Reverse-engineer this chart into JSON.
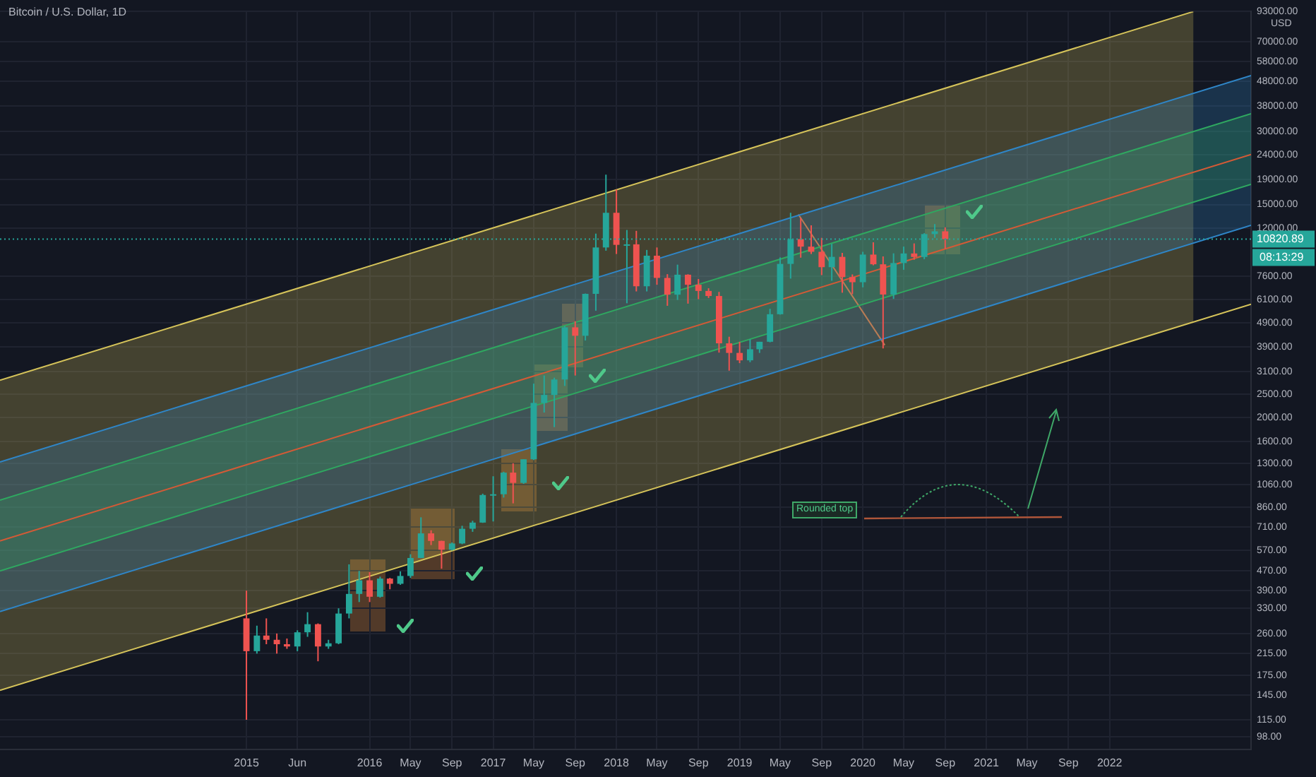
{
  "chart_data": {
    "type": "candlestick",
    "title": "Bitcoin / U.S. Dollar, 1D",
    "ylabel": "USD",
    "log": "y",
    "grid": true,
    "xlim": [
      "2013-01-01",
      "2023-02-24"
    ],
    "ylim": [
      87,
      93000
    ],
    "xticks": [
      {
        "value": "2015-01-01",
        "label": "2015"
      },
      {
        "value": "2015-06-01",
        "label": "Jun"
      },
      {
        "value": "2016-01-01",
        "label": "2016"
      },
      {
        "value": "2016-05-01",
        "label": "May"
      },
      {
        "value": "2016-09-01",
        "label": "Sep"
      },
      {
        "value": "2017-01-01",
        "label": "2017"
      },
      {
        "value": "2017-05-01",
        "label": "May"
      },
      {
        "value": "2017-09-01",
        "label": "Sep"
      },
      {
        "value": "2018-01-01",
        "label": "2018"
      },
      {
        "value": "2018-05-01",
        "label": "May"
      },
      {
        "value": "2018-09-01",
        "label": "Sep"
      },
      {
        "value": "2019-01-01",
        "label": "2019"
      },
      {
        "value": "2019-05-01",
        "label": "May"
      },
      {
        "value": "2019-09-01",
        "label": "Sep"
      },
      {
        "value": "2020-01-01",
        "label": "2020"
      },
      {
        "value": "2020-05-01",
        "label": "May"
      },
      {
        "value": "2020-09-01",
        "label": "Sep"
      },
      {
        "value": "2021-01-01",
        "label": "2021"
      },
      {
        "value": "2021-05-01",
        "label": "May"
      },
      {
        "value": "2021-09-01",
        "label": "Sep"
      },
      {
        "value": "2022-01-01",
        "label": "2022"
      }
    ],
    "yticks": [
      {
        "value": 93000,
        "label": "93000.00"
      },
      {
        "value": 70000,
        "label": "70000.00"
      },
      {
        "value": 58000,
        "label": "58000.00"
      },
      {
        "value": 48000,
        "label": "48000.00"
      },
      {
        "value": 38000,
        "label": "38000.00"
      },
      {
        "value": 30000,
        "label": "30000.00"
      },
      {
        "value": 24000,
        "label": "24000.00"
      },
      {
        "value": 19000,
        "label": "19000.00"
      },
      {
        "value": 15000,
        "label": "15000.00"
      },
      {
        "value": 12000,
        "label": "12000.00"
      },
      {
        "value": 7600,
        "label": "7600.00"
      },
      {
        "value": 6100,
        "label": "6100.00"
      },
      {
        "value": 4900,
        "label": "4900.00"
      },
      {
        "value": 3900,
        "label": "3900.00"
      },
      {
        "value": 3100,
        "label": "3100.00"
      },
      {
        "value": 2500,
        "label": "2500.00"
      },
      {
        "value": 2000,
        "label": "2000.00"
      },
      {
        "value": 1600,
        "label": "1600.00"
      },
      {
        "value": 1300,
        "label": "1300.00"
      },
      {
        "value": 1060,
        "label": "1060.00"
      },
      {
        "value": 860,
        "label": "860.00"
      },
      {
        "value": 710,
        "label": "710.00"
      },
      {
        "value": 570,
        "label": "570.00"
      },
      {
        "value": 470,
        "label": "470.00"
      },
      {
        "value": 390,
        "label": "390.00"
      },
      {
        "value": 330,
        "label": "330.00"
      },
      {
        "value": 260,
        "label": "260.00"
      },
      {
        "value": 215,
        "label": "215.00"
      },
      {
        "value": 175,
        "label": "175.00"
      },
      {
        "value": 145,
        "label": "145.00"
      },
      {
        "value": 115,
        "label": "115.00"
      },
      {
        "value": 98,
        "label": "98.00"
      }
    ],
    "x": [
      "2015-01",
      "2015-02",
      "2015-03",
      "2015-04",
      "2015-05",
      "2015-06",
      "2015-07",
      "2015-08",
      "2015-09",
      "2015-10",
      "2015-11",
      "2015-12",
      "2016-01",
      "2016-02",
      "2016-03",
      "2016-04",
      "2016-05",
      "2016-06",
      "2016-07",
      "2016-08",
      "2016-09",
      "2016-10",
      "2016-11",
      "2016-12",
      "2017-01",
      "2017-02",
      "2017-03",
      "2017-04",
      "2017-05",
      "2017-06",
      "2017-07",
      "2017-08",
      "2017-09",
      "2017-10",
      "2017-11",
      "2017-12",
      "2018-01",
      "2018-02",
      "2018-03",
      "2018-04",
      "2018-05",
      "2018-06",
      "2018-07",
      "2018-08",
      "2018-09",
      "2018-10",
      "2018-11",
      "2018-12",
      "2019-01",
      "2019-02",
      "2019-03",
      "2019-04",
      "2019-05",
      "2019-06",
      "2019-07",
      "2019-08",
      "2019-09",
      "2019-10",
      "2019-11",
      "2019-12",
      "2020-01",
      "2020-02",
      "2020-03",
      "2020-04",
      "2020-05",
      "2020-06",
      "2020-07",
      "2020-08",
      "2020-09"
    ],
    "ohlc": [
      [
        300,
        390,
        115,
        220
      ],
      [
        220,
        280,
        215,
        255
      ],
      [
        255,
        300,
        235,
        245
      ],
      [
        245,
        260,
        215,
        235
      ],
      [
        235,
        248,
        225,
        230
      ],
      [
        230,
        268,
        220,
        263
      ],
      [
        263,
        318,
        252,
        284
      ],
      [
        284,
        286,
        200,
        230
      ],
      [
        230,
        245,
        225,
        237
      ],
      [
        237,
        330,
        235,
        314
      ],
      [
        314,
        500,
        300,
        378
      ],
      [
        378,
        470,
        350,
        430
      ],
      [
        430,
        465,
        350,
        368
      ],
      [
        368,
        445,
        365,
        437
      ],
      [
        437,
        440,
        395,
        416
      ],
      [
        416,
        468,
        412,
        448
      ],
      [
        448,
        550,
        440,
        531
      ],
      [
        531,
        780,
        530,
        670
      ],
      [
        670,
        690,
        600,
        624
      ],
      [
        624,
        625,
        480,
        574
      ],
      [
        574,
        615,
        570,
        609
      ],
      [
        609,
        720,
        605,
        700
      ],
      [
        700,
        755,
        680,
        742
      ],
      [
        742,
        975,
        740,
        963
      ],
      [
        963,
        1150,
        750,
        970
      ],
      [
        970,
        1200,
        940,
        1190
      ],
      [
        1190,
        1300,
        890,
        1080
      ],
      [
        1080,
        1350,
        1070,
        1350
      ],
      [
        1350,
        2760,
        1340,
        2300
      ],
      [
        2300,
        2980,
        2100,
        2480
      ],
      [
        2480,
        2920,
        1830,
        2870
      ],
      [
        2870,
        4750,
        2700,
        4700
      ],
      [
        4700,
        4980,
        2980,
        4340
      ],
      [
        4340,
        6470,
        4150,
        6450
      ],
      [
        6450,
        11400,
        5500,
        10000
      ],
      [
        10000,
        19890,
        9700,
        13880
      ],
      [
        13880,
        17300,
        9400,
        10250
      ],
      [
        10250,
        11800,
        5900,
        10300
      ],
      [
        10300,
        11700,
        6600,
        6930
      ],
      [
        6930,
        9770,
        6600,
        9250
      ],
      [
        9250,
        10000,
        7030,
        7500
      ],
      [
        7500,
        7770,
        5760,
        6400
      ],
      [
        6400,
        8500,
        6090,
        7730
      ],
      [
        7730,
        7760,
        5880,
        7030
      ],
      [
        7030,
        7420,
        6130,
        6630
      ],
      [
        6630,
        6800,
        6200,
        6320
      ],
      [
        6320,
        6570,
        3700,
        4040
      ],
      [
        4040,
        4300,
        3120,
        3690
      ],
      [
        3690,
        4100,
        3350,
        3440
      ],
      [
        3440,
        4200,
        3380,
        3820
      ],
      [
        3820,
        4100,
        3690,
        4100
      ],
      [
        4100,
        5600,
        4080,
        5320
      ],
      [
        5320,
        9100,
        5300,
        8560
      ],
      [
        8560,
        13880,
        7450,
        10820
      ],
      [
        10820,
        13200,
        9080,
        10080
      ],
      [
        10080,
        12330,
        9400,
        9600
      ],
      [
        9600,
        10950,
        7700,
        8300
      ],
      [
        8300,
        10350,
        7300,
        9150
      ],
      [
        9150,
        9500,
        6520,
        7560
      ],
      [
        7560,
        7750,
        6430,
        7200
      ],
      [
        7200,
        9600,
        6860,
        9350
      ],
      [
        9350,
        10500,
        8450,
        8530
      ],
      [
        8530,
        9190,
        3850,
        6410
      ],
      [
        6410,
        9460,
        6150,
        8630
      ],
      [
        8630,
        10080,
        8100,
        9450
      ],
      [
        9450,
        10390,
        8900,
        9140
      ],
      [
        9140,
        11450,
        8950,
        11350
      ],
      [
        11350,
        12480,
        10950,
        11650
      ],
      [
        11650,
        12100,
        9880,
        10820.89
      ]
    ],
    "series": [
      {
        "type": "line",
        "color": "#d6c45a",
        "x": [
          "2013-01-01",
          "2022-09-06"
        ],
        "values": [
          2850,
          93000
        ],
        "lower": [
          152,
          4940
        ],
        "upper": [
          2850,
          93000
        ]
      },
      {
        "type": "line",
        "color": "#2f86c8",
        "x": [
          "2013-01-01",
          "2023-02-24"
        ],
        "values": [
          1316,
          50800
        ],
        "lower": [
          320,
          12330
        ],
        "upper": [
          1316,
          50800
        ]
      },
      {
        "type": "line",
        "color": "#2fa860",
        "x": [
          "2013-01-01",
          "2023-02-24"
        ],
        "values": [
          918,
          35400
        ],
        "lower": [
          470,
          18150
        ],
        "upper": [
          918,
          35400
        ]
      },
      {
        "type": "line",
        "color": "#d45a36",
        "x": [
          "2013-01-01",
          "2023-02-24"
        ],
        "values": [
          624,
          24100
        ]
      },
      {
        "type": "line",
        "color": "#2fa860",
        "x": [
          "2013-01-01",
          "2023-02-24"
        ],
        "values": [
          470,
          18150
        ]
      },
      {
        "type": "line",
        "color": "#2f86c8",
        "x": [
          "2013-01-01",
          "2023-02-24"
        ],
        "values": [
          320,
          12330
        ]
      },
      {
        "type": "line",
        "color": "#d6c45a",
        "x": [
          "2013-01-01",
          "2023-02-24"
        ],
        "values": [
          152,
          5850
        ]
      },
      {
        "type": "line",
        "color": "#b97c55",
        "x": [
          "2019-06-24",
          "2020-03-06"
        ],
        "values": [
          13670,
          3970
        ]
      }
    ],
    "ref_lines": [
      {
        "axis": "y",
        "value": 10820.89,
        "label": "10820.89",
        "color": "#26a69a",
        "line_style": "dotted"
      }
    ],
    "annotations": [
      "Rounded top",
      "08:13:29"
    ]
  }
}
